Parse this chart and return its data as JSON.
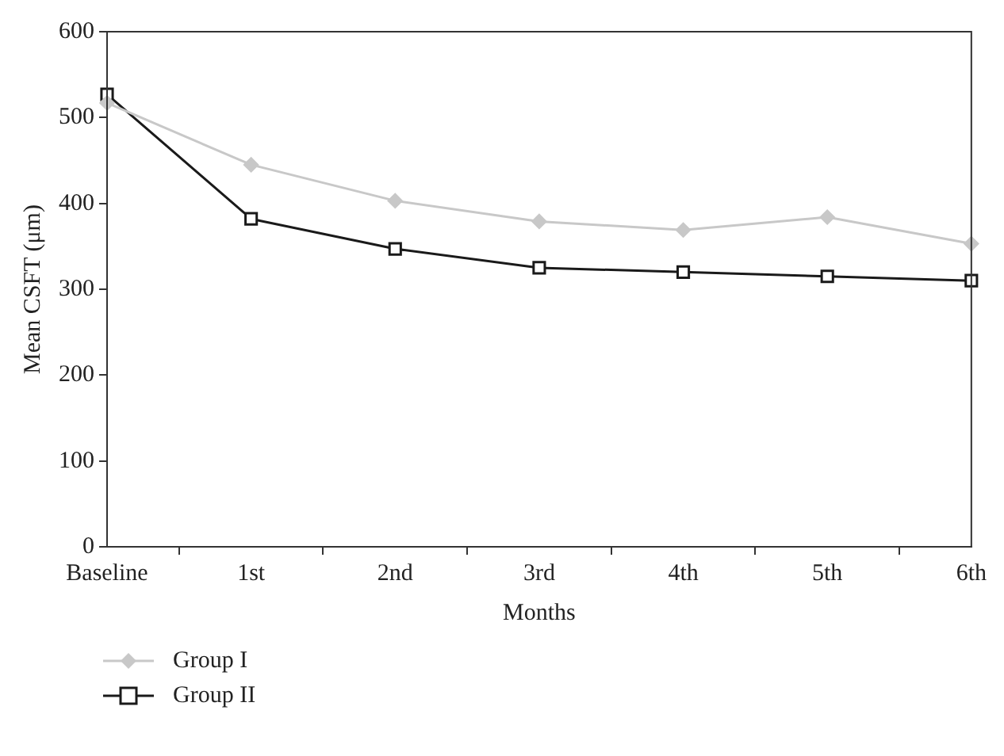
{
  "chart_data": {
    "type": "line",
    "xlabel": "Months",
    "ylabel": "Mean CSFT (μm)",
    "categories": [
      "Baseline",
      "1st",
      "2nd",
      "3rd",
      "4th",
      "5th",
      "6th"
    ],
    "series": [
      {
        "name": "Group I",
        "color": "#c8c8c8",
        "marker": "diamond",
        "values": [
          517,
          445,
          403,
          379,
          369,
          384,
          353
        ]
      },
      {
        "name": "Group II",
        "color": "#1a1a1a",
        "marker": "square",
        "values": [
          527,
          382,
          347,
          325,
          320,
          315,
          310
        ]
      }
    ],
    "ylim": [
      0,
      600
    ],
    "yticks": [
      0,
      100,
      200,
      300,
      400,
      500,
      600
    ],
    "grid": false,
    "legend": "bottom left",
    "line_style": "solid"
  }
}
